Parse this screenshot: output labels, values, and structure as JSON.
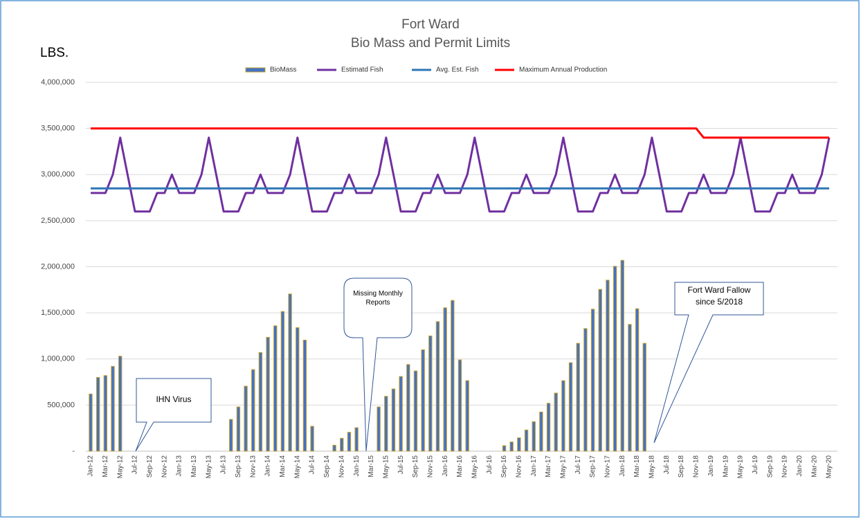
{
  "chart_data": {
    "type": "combo",
    "title": "Fort Ward",
    "subtitle": "Bio Mass and Permit Limits",
    "ylabel": "LBS.",
    "categories": [
      "Jan-12",
      null,
      "Mar-12",
      null,
      "May-12",
      null,
      "Jul-12",
      null,
      "Sep-12",
      null,
      "Nov-12",
      null,
      "Jan-13",
      null,
      "Mar-13",
      null,
      "May-13",
      null,
      "Jul-13",
      null,
      "Sep-13",
      null,
      "Nov-13",
      null,
      "Jan-14",
      null,
      "Mar-14",
      null,
      "May-14",
      null,
      "Jul-14",
      null,
      "Sep-14",
      null,
      "Nov-14",
      null,
      "Jan-15",
      null,
      "Mar-15",
      null,
      "May-15",
      null,
      "Jul-15",
      null,
      "Sep-15",
      null,
      "Nov-15",
      null,
      "Jan-16",
      null,
      "Mar-16",
      null,
      "May-16",
      null,
      "Jul-16",
      null,
      "Sep-16",
      null,
      "Nov-16",
      null,
      "Jan-17",
      null,
      "Mar-17",
      null,
      "May-17",
      null,
      "Jul-17",
      null,
      "Sep-17",
      null,
      "Nov-17",
      null,
      "Jan-18",
      null,
      "Mar-18",
      null,
      "May-18",
      null,
      "Jul-18",
      null,
      "Sep-18",
      null,
      "Nov-18",
      null,
      "Jan-19",
      null,
      "Mar-19",
      null,
      "May-19",
      null,
      "Jul-19",
      null,
      "Sep-19",
      null,
      "Nov-19",
      null,
      "Jan-20",
      null,
      "Mar-20",
      null,
      "May-20"
    ],
    "series": [
      {
        "name": "BioMass",
        "type": "bar",
        "color": "#4472c4",
        "edge": "#c9a227",
        "values": [
          620000,
          800000,
          820000,
          920000,
          1030000,
          null,
          null,
          null,
          null,
          null,
          null,
          null,
          null,
          null,
          null,
          null,
          null,
          null,
          null,
          345000,
          480000,
          705000,
          885000,
          1070000,
          1235000,
          1360000,
          1515000,
          1705000,
          1340000,
          1205000,
          270000,
          null,
          null,
          65000,
          140000,
          205000,
          255000,
          null,
          null,
          480000,
          595000,
          675000,
          810000,
          940000,
          870000,
          1100000,
          1250000,
          1405000,
          1555000,
          1635000,
          990000,
          765000,
          null,
          null,
          null,
          null,
          60000,
          100000,
          145000,
          230000,
          320000,
          425000,
          520000,
          630000,
          765000,
          960000,
          1170000,
          1330000,
          1540000,
          1755000,
          1855000,
          2005000,
          2070000,
          1375000,
          1545000,
          1170000,
          null,
          null,
          null,
          null,
          null,
          null,
          null,
          null,
          null,
          null,
          null,
          null,
          null,
          null,
          null,
          null,
          null,
          null,
          null,
          null,
          null,
          null,
          null,
          null,
          null
        ]
      },
      {
        "name": "Estimatd Fish",
        "type": "line",
        "color": "#7030a0",
        "values": [
          2800000,
          2800000,
          2800000,
          3000000,
          3400000,
          3000000,
          2600000,
          2600000,
          2600000,
          2800000,
          2800000,
          3000000,
          2800000,
          2800000,
          2800000,
          3000000,
          3400000,
          3000000,
          2600000,
          2600000,
          2600000,
          2800000,
          2800000,
          3000000,
          2800000,
          2800000,
          2800000,
          3000000,
          3400000,
          3000000,
          2600000,
          2600000,
          2600000,
          2800000,
          2800000,
          3000000,
          2800000,
          2800000,
          2800000,
          3000000,
          3400000,
          3000000,
          2600000,
          2600000,
          2600000,
          2800000,
          2800000,
          3000000,
          2800000,
          2800000,
          2800000,
          3000000,
          3400000,
          3000000,
          2600000,
          2600000,
          2600000,
          2800000,
          2800000,
          3000000,
          2800000,
          2800000,
          2800000,
          3000000,
          3400000,
          3000000,
          2600000,
          2600000,
          2600000,
          2800000,
          2800000,
          3000000,
          2800000,
          2800000,
          2800000,
          3000000,
          3400000,
          3000000,
          2600000,
          2600000,
          2600000,
          2800000,
          2800000,
          3000000,
          2800000,
          2800000,
          2800000,
          3000000,
          3400000,
          3000000,
          2600000,
          2600000,
          2600000,
          2800000,
          2800000,
          3000000,
          2800000,
          2800000,
          2800000,
          3000000,
          3400000
        ]
      },
      {
        "name": "Avg. Est. Fish",
        "type": "line",
        "color": "#2e75b6",
        "values": [
          2850000,
          2850000,
          2850000,
          2850000,
          2850000,
          2850000,
          2850000,
          2850000,
          2850000,
          2850000,
          2850000,
          2850000,
          2850000,
          2850000,
          2850000,
          2850000,
          2850000,
          2850000,
          2850000,
          2850000,
          2850000,
          2850000,
          2850000,
          2850000,
          2850000,
          2850000,
          2850000,
          2850000,
          2850000,
          2850000,
          2850000,
          2850000,
          2850000,
          2850000,
          2850000,
          2850000,
          2850000,
          2850000,
          2850000,
          2850000,
          2850000,
          2850000,
          2850000,
          2850000,
          2850000,
          2850000,
          2850000,
          2850000,
          2850000,
          2850000,
          2850000,
          2850000,
          2850000,
          2850000,
          2850000,
          2850000,
          2850000,
          2850000,
          2850000,
          2850000,
          2850000,
          2850000,
          2850000,
          2850000,
          2850000,
          2850000,
          2850000,
          2850000,
          2850000,
          2850000,
          2850000,
          2850000,
          2850000,
          2850000,
          2850000,
          2850000,
          2850000,
          2850000,
          2850000,
          2850000,
          2850000,
          2850000,
          2850000,
          2850000,
          2850000,
          2850000,
          2850000,
          2850000,
          2850000,
          2850000,
          2850000,
          2850000,
          2850000,
          2850000,
          2850000,
          2850000,
          2850000,
          2850000,
          2850000,
          2850000,
          2850000
        ]
      },
      {
        "name": "Maximum Annual Production",
        "type": "line",
        "color": "#ff0000",
        "values": [
          3500000,
          3500000,
          3500000,
          3500000,
          3500000,
          3500000,
          3500000,
          3500000,
          3500000,
          3500000,
          3500000,
          3500000,
          3500000,
          3500000,
          3500000,
          3500000,
          3500000,
          3500000,
          3500000,
          3500000,
          3500000,
          3500000,
          3500000,
          3500000,
          3500000,
          3500000,
          3500000,
          3500000,
          3500000,
          3500000,
          3500000,
          3500000,
          3500000,
          3500000,
          3500000,
          3500000,
          3500000,
          3500000,
          3500000,
          3500000,
          3500000,
          3500000,
          3500000,
          3500000,
          3500000,
          3500000,
          3500000,
          3500000,
          3500000,
          3500000,
          3500000,
          3500000,
          3500000,
          3500000,
          3500000,
          3500000,
          3500000,
          3500000,
          3500000,
          3500000,
          3500000,
          3500000,
          3500000,
          3500000,
          3500000,
          3500000,
          3500000,
          3500000,
          3500000,
          3500000,
          3500000,
          3500000,
          3500000,
          3500000,
          3500000,
          3500000,
          3500000,
          3500000,
          3500000,
          3500000,
          3500000,
          3500000,
          3500000,
          3400000,
          3400000,
          3400000,
          3400000,
          3400000,
          3400000,
          3400000,
          3400000,
          3400000,
          3400000,
          3400000,
          3400000,
          3400000,
          3400000,
          3400000,
          3400000,
          3400000,
          3400000
        ]
      }
    ],
    "ylim": [
      0,
      4000000
    ],
    "yticks": [
      {
        "value": 0,
        "label": "-"
      },
      {
        "value": 500000,
        "label": "500,000"
      },
      {
        "value": 1000000,
        "label": "1,000,000"
      },
      {
        "value": 1500000,
        "label": "1,500,000"
      },
      {
        "value": 2000000,
        "label": "2,000,000"
      },
      {
        "value": 2500000,
        "label": "2,500,000"
      },
      {
        "value": 3000000,
        "label": "3,000,000"
      },
      {
        "value": 3500000,
        "label": "3,500,000"
      },
      {
        "value": 4000000,
        "label": "4,000,000"
      }
    ],
    "grid": true,
    "legend": "top",
    "annotations": [
      "IHN Virus",
      "Missing Monthly Reports",
      "Fort Ward Fallow since 5/2018"
    ]
  }
}
